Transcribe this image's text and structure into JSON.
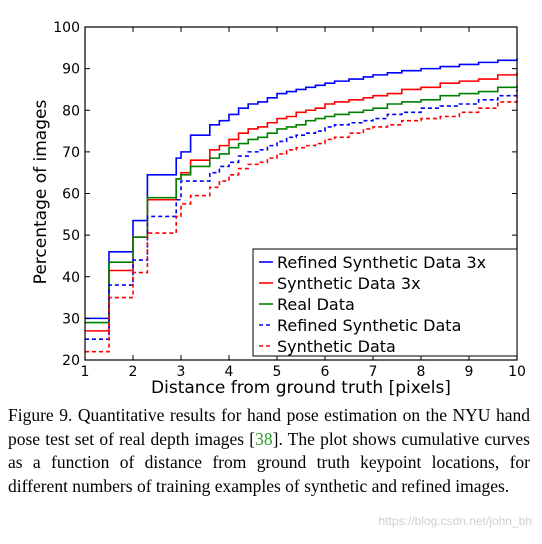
{
  "chart_data": {
    "type": "line",
    "title": "",
    "xlabel": "Distance from ground truth [pixels]",
    "ylabel": "Percentage of images",
    "xlim": [
      1,
      10
    ],
    "ylim": [
      20,
      100
    ],
    "xticks": [
      1,
      2,
      3,
      4,
      5,
      6,
      7,
      8,
      9,
      10
    ],
    "yticks": [
      20,
      30,
      40,
      50,
      60,
      70,
      80,
      90,
      100
    ],
    "grid": false,
    "legend_position": "lower-right",
    "series": [
      {
        "name": "Refined Synthetic Data 3x",
        "color": "#0000ff",
        "style": "solid",
        "x": [
          1,
          1.5,
          2,
          2.3,
          2.9,
          3,
          3.2,
          3.6,
          3.8,
          4,
          4.2,
          4.4,
          4.6,
          4.8,
          5,
          5.2,
          5.4,
          5.6,
          5.8,
          6,
          6.2,
          6.5,
          6.8,
          7,
          7.3,
          7.6,
          8,
          8.4,
          8.8,
          9.2,
          9.6,
          10
        ],
        "y": [
          30,
          46,
          53.5,
          64.5,
          68.5,
          70,
          74,
          76.5,
          77.5,
          79,
          80.5,
          81.5,
          82,
          83,
          84,
          84.5,
          85,
          85.5,
          86,
          86.5,
          87,
          87.5,
          88,
          88.5,
          89,
          89.5,
          90,
          90.5,
          91,
          91.5,
          92,
          92.5
        ]
      },
      {
        "name": "Synthetic Data 3x",
        "color": "#ff0000",
        "style": "solid",
        "x": [
          1,
          1.5,
          2,
          2.3,
          2.9,
          3,
          3.2,
          3.6,
          3.8,
          4,
          4.2,
          4.4,
          4.6,
          4.8,
          5,
          5.2,
          5.4,
          5.6,
          5.8,
          6,
          6.2,
          6.5,
          6.8,
          7,
          7.3,
          7.6,
          8,
          8.4,
          8.8,
          9.2,
          9.6,
          10
        ],
        "y": [
          27,
          41.5,
          49.5,
          58.5,
          63.5,
          65,
          68,
          70.5,
          71.5,
          73,
          74.5,
          75.5,
          76,
          77,
          78,
          78.5,
          79.5,
          80,
          80.5,
          81.5,
          82,
          82.5,
          83,
          83.5,
          84,
          85,
          85.5,
          86.5,
          87,
          87.5,
          88.5,
          89
        ]
      },
      {
        "name": "Real Data",
        "color": "#008000",
        "style": "solid",
        "x": [
          1,
          1.5,
          2,
          2.3,
          2.9,
          3,
          3.2,
          3.6,
          3.8,
          4,
          4.2,
          4.4,
          4.6,
          4.8,
          5,
          5.2,
          5.4,
          5.6,
          5.8,
          6,
          6.2,
          6.5,
          6.8,
          7,
          7.3,
          7.6,
          8,
          8.4,
          8.8,
          9.2,
          9.6,
          10
        ],
        "y": [
          29,
          43.5,
          49.5,
          59,
          63.5,
          64.5,
          66.5,
          68.5,
          69.5,
          71,
          72,
          73,
          73.5,
          74.5,
          75.5,
          76,
          76.5,
          77.5,
          78,
          78.5,
          79,
          79.5,
          80,
          80.5,
          81.5,
          82,
          82.5,
          83.5,
          84,
          84.5,
          85.5,
          86
        ]
      },
      {
        "name": "Refined Synthetic Data",
        "color": "#0000ff",
        "style": "dashed",
        "x": [
          1,
          1.5,
          2,
          2.3,
          2.9,
          3,
          3.2,
          3.6,
          3.8,
          4,
          4.2,
          4.4,
          4.6,
          4.8,
          5,
          5.2,
          5.4,
          5.6,
          5.8,
          6,
          6.2,
          6.5,
          6.8,
          7,
          7.3,
          7.6,
          8,
          8.4,
          8.8,
          9.2,
          9.6,
          10
        ],
        "y": [
          25,
          38,
          44,
          54.5,
          58.5,
          63,
          63,
          65,
          66.5,
          67.5,
          69,
          70,
          70.5,
          71.5,
          72.5,
          73.5,
          74,
          74.5,
          75,
          76,
          76.5,
          77,
          77.5,
          78,
          79,
          79.5,
          80.5,
          81,
          81.5,
          82.5,
          83.5,
          85
        ]
      },
      {
        "name": "Synthetic Data",
        "color": "#ff0000",
        "style": "dashed",
        "x": [
          1,
          1.5,
          2,
          2.3,
          2.9,
          3,
          3.2,
          3.6,
          3.8,
          4,
          4.2,
          4.4,
          4.6,
          4.8,
          5,
          5.2,
          5.4,
          5.6,
          5.8,
          6,
          6.2,
          6.5,
          6.8,
          7,
          7.3,
          7.6,
          8,
          8.4,
          8.8,
          9.2,
          9.6,
          10
        ],
        "y": [
          22,
          35,
          41,
          50.5,
          54.5,
          57.5,
          59.5,
          61.5,
          63,
          64.5,
          66,
          67,
          67.5,
          68.5,
          69.5,
          70.5,
          71,
          71.5,
          72,
          73,
          73.5,
          74.5,
          75.5,
          76,
          76.5,
          77.5,
          78,
          78.5,
          79.5,
          80.5,
          82,
          83.5
        ]
      }
    ]
  },
  "caption": {
    "part1": "Figure 9. Quantitative results for hand pose estimation on the NYU hand pose test set of real depth images [",
    "ref": "38",
    "part2": "].  The plot shows cumulative curves as a function of distance from ground truth keypoint locations, for different numbers of training examples of synthetic and refined images."
  },
  "watermark": "https://blog.csdn.net/john_bh"
}
